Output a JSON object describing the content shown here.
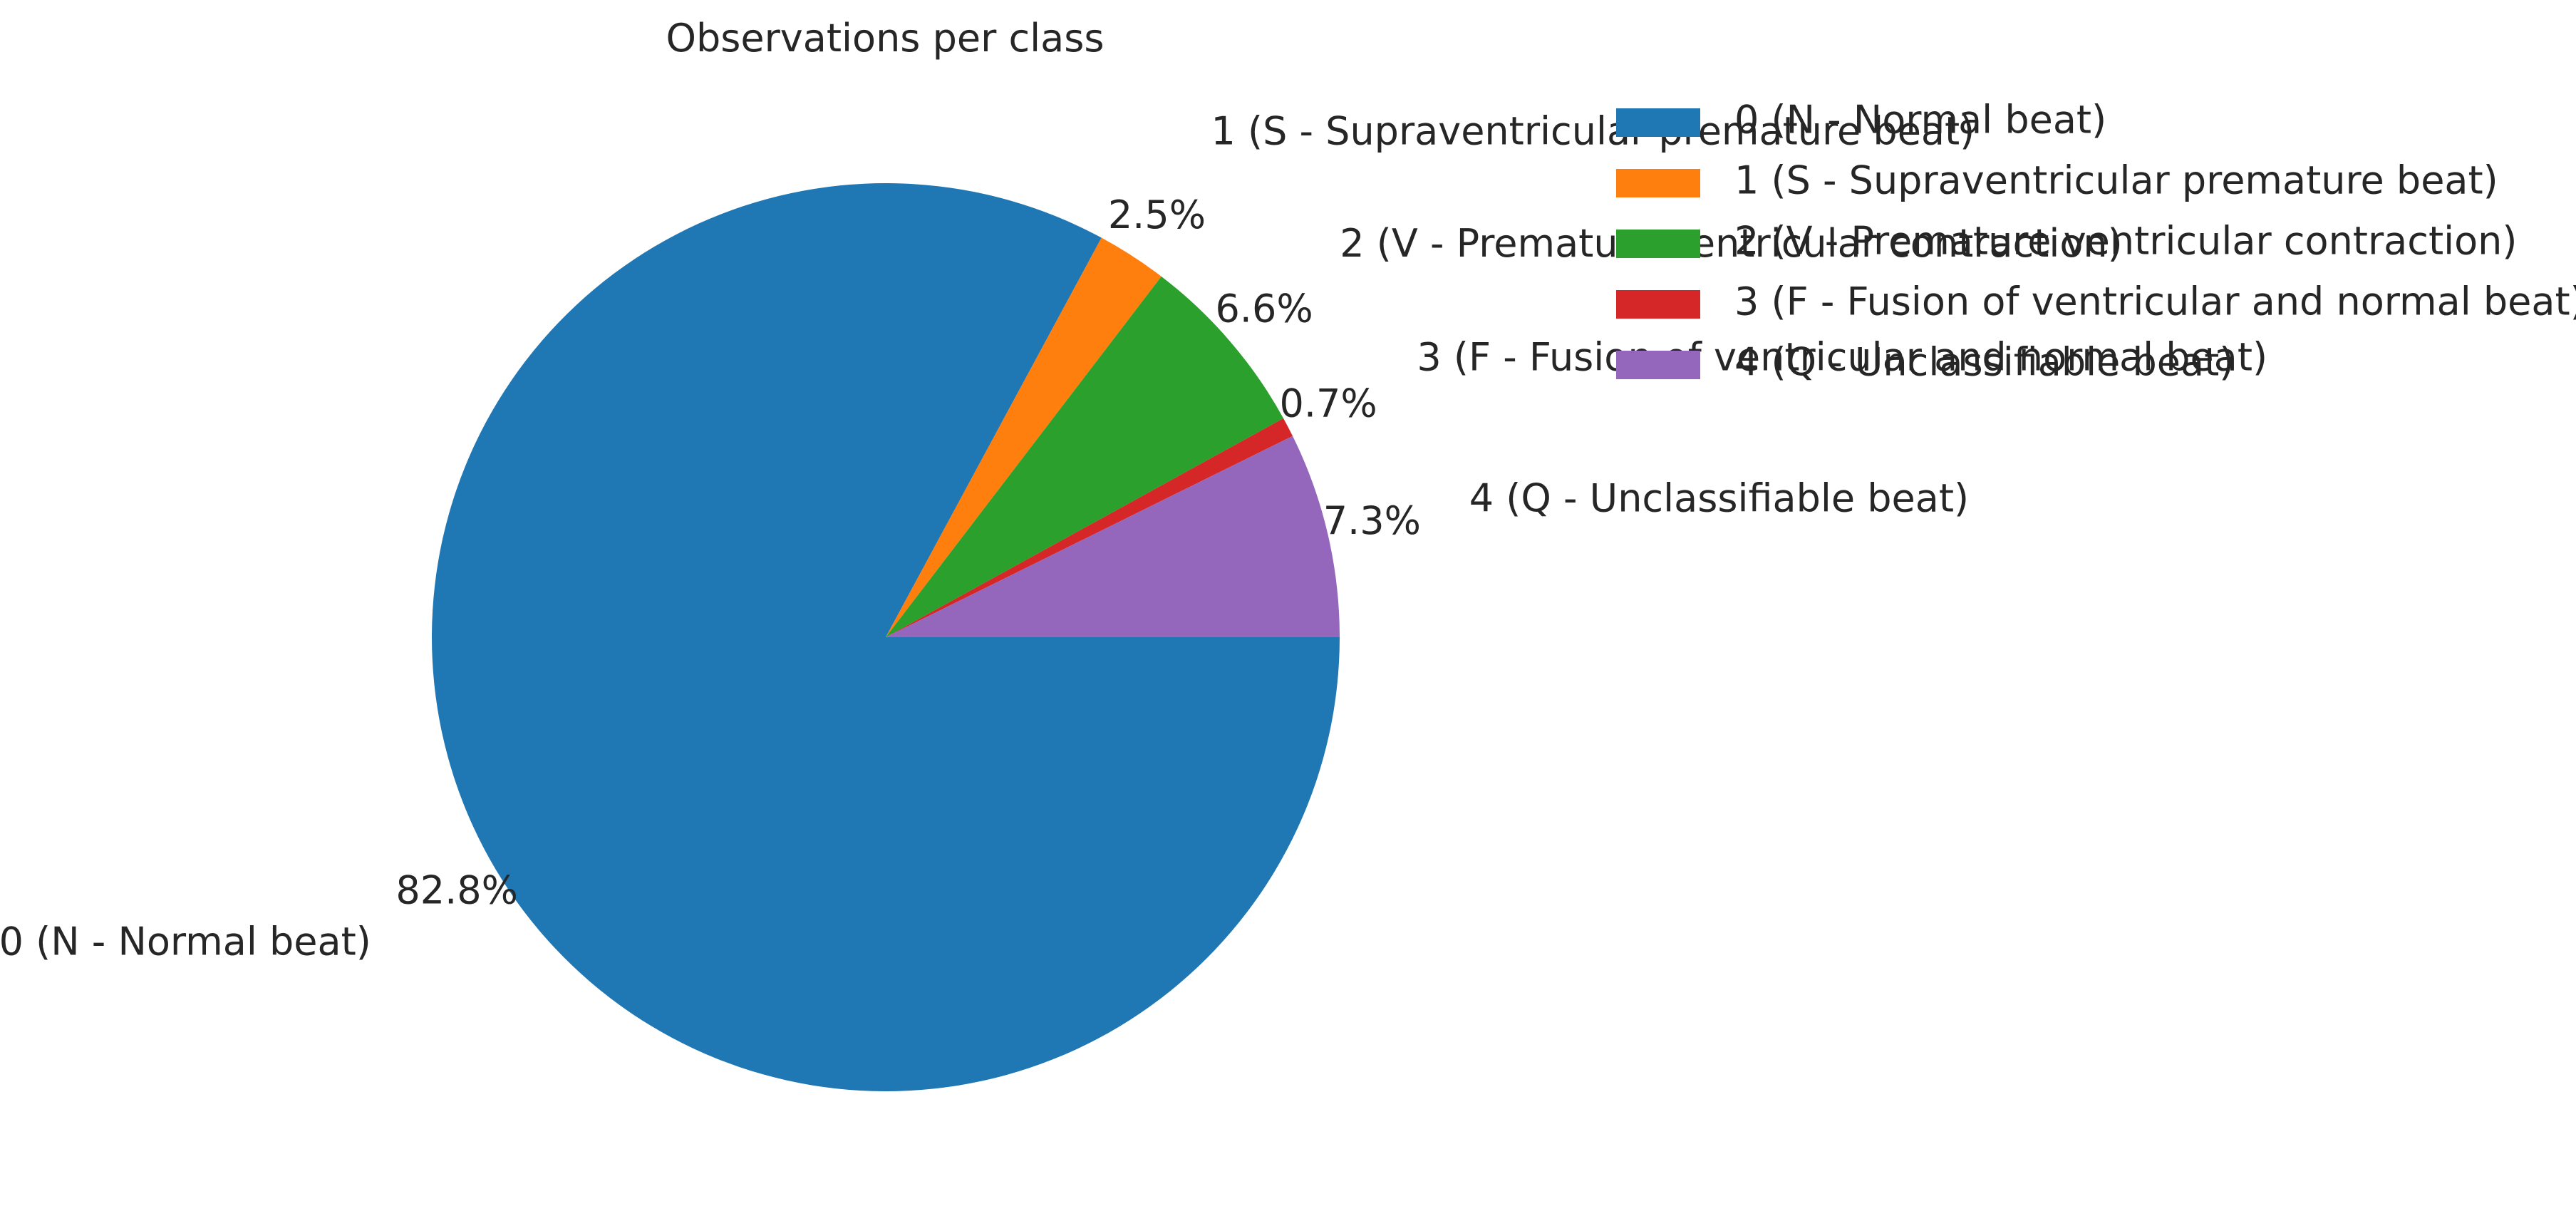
{
  "chart_data": {
    "type": "pie",
    "title": "Observations per class",
    "categories": [
      "0 (N - Normal beat)",
      "1 (S - Supraventricular premature beat)",
      "2 (V - Premature ventricular contraction)",
      "3 (F - Fusion of ventricular and normal beat)",
      "4 (Q - Unclassifiable beat)"
    ],
    "values": [
      82.8,
      2.5,
      6.6,
      0.7,
      7.3
    ],
    "value_labels": [
      "82.8%",
      "2.5%",
      "6.6%",
      "0.7%",
      "7.3%"
    ],
    "colors": [
      "#1f77b4",
      "#ff7f0e",
      "#2ca02c",
      "#d62728",
      "#9467bd"
    ],
    "start_angle_deg": 0,
    "direction": "clockwise",
    "legend": {
      "placement": "upper-right",
      "entries": [
        "0 (N - Normal beat)",
        "1 (S - Supraventricular premature beat)",
        "2 (V - Premature ventricular contraction)",
        "3 (F - Fusion of ventricular and normal beat)",
        "4 (Q - Unclassifiable beat)"
      ]
    }
  }
}
